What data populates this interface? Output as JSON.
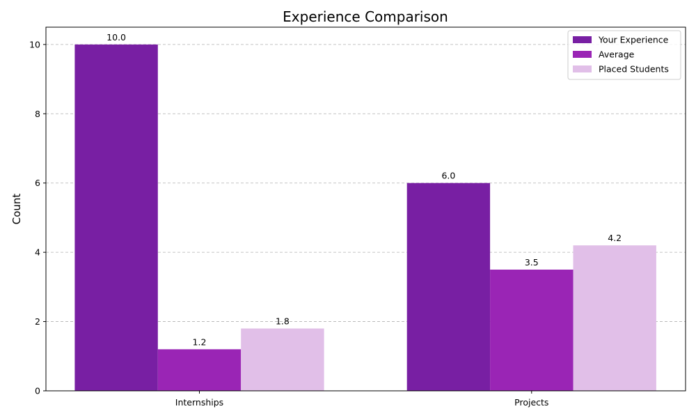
{
  "chart_data": {
    "type": "bar",
    "title": "Experience Comparison",
    "xlabel": "",
    "ylabel": "Count",
    "categories": [
      "Internships",
      "Projects"
    ],
    "series": [
      {
        "name": "Your Experience",
        "values": [
          10.0,
          6.0
        ],
        "color": "#781fa3"
      },
      {
        "name": "Average",
        "values": [
          1.2,
          3.5
        ],
        "color": "#9a25b5"
      },
      {
        "name": "Placed Students",
        "values": [
          1.8,
          4.2
        ],
        "color": "#e1bfe8"
      }
    ],
    "ylim": [
      0,
      10.5
    ],
    "yticks": [
      0,
      2,
      4,
      6,
      8,
      10
    ],
    "grid": "y-dashed",
    "legend_position": "top-right",
    "value_format_decimals": 1
  }
}
